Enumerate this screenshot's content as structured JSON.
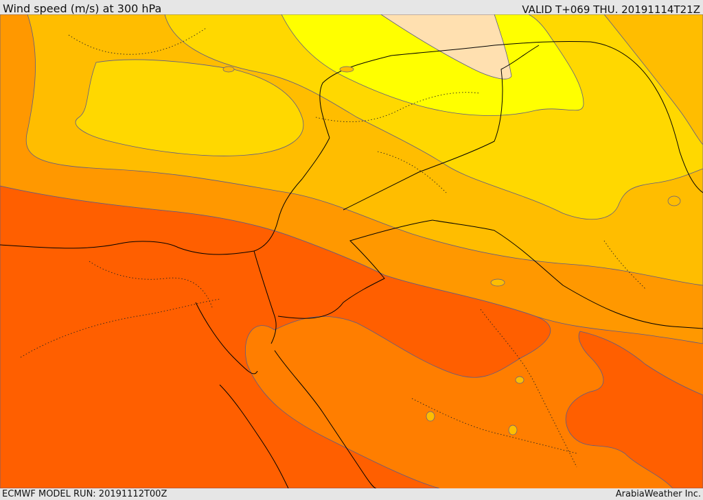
{
  "header": {
    "title": "Wind speed (m/s) at 300 hPa",
    "valid": "VALID T+069 THU. 20191114T21Z"
  },
  "footer": {
    "model_run": "ECMWF MODEL RUN: 20191112T00Z",
    "credit": "ArabiaWeather Inc."
  },
  "palette": {
    "band_1": "#ffe0b0",
    "band_2": "#ffff00",
    "band_3": "#ffd800",
    "band_4": "#ffbd00",
    "band_5": "#ff9800",
    "band_6": "#ff7e00",
    "band_7": "#ff5f00",
    "contour": "#5a5a8a",
    "border": "#000000"
  }
}
